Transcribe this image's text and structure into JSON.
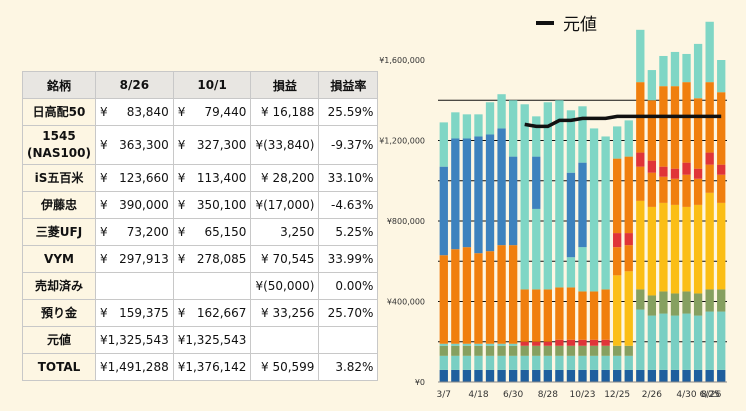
{
  "table": {
    "headers": [
      "銘柄",
      "8/26",
      "10/1",
      "損益",
      "損益率"
    ],
    "rows": [
      {
        "name": "日高配50",
        "a_cur": "¥",
        "a": "83,840",
        "b_cur": "¥",
        "b": "79,440",
        "pl": "¥ 16,188",
        "pct": "25.59%"
      },
      {
        "name": "1545\n(NAS100)",
        "a_cur": "¥",
        "a": "363,300",
        "b_cur": "¥",
        "b": "327,300",
        "pl": "¥(33,840)",
        "pct": "-9.37%"
      },
      {
        "name": "iS五百米",
        "a_cur": "¥",
        "a": "123,660",
        "b_cur": "¥",
        "b": "113,400",
        "pl": "¥ 28,200",
        "pct": "33.10%"
      },
      {
        "name": "伊藤忠",
        "a_cur": "¥",
        "a": "390,000",
        "b_cur": "¥",
        "b": "350,100",
        "pl": "¥(17,000)",
        "pct": "-4.63%"
      },
      {
        "name": "三菱UFJ",
        "a_cur": "¥",
        "a": "73,200",
        "b_cur": "¥",
        "b": "65,150",
        "pl": "3,250",
        "pct": "5.25%"
      },
      {
        "name": "VYM",
        "a_cur": "¥",
        "a": "297,913",
        "b_cur": "¥",
        "b": "278,085",
        "pl": "¥ 70,545",
        "pct": "33.99%"
      },
      {
        "name": "売却済み",
        "a_cur": "",
        "a": "",
        "b_cur": "",
        "b": "",
        "pl": "¥(50,000)",
        "pct": "0.00%"
      },
      {
        "name": "預り金",
        "a_cur": "¥",
        "a": "159,375",
        "b_cur": "¥",
        "b": "162,667",
        "pl": "¥ 33,256",
        "pct": "25.70%"
      },
      {
        "name": "元値",
        "a_cur": "",
        "a": "¥1,325,543",
        "b_cur": "",
        "b": "¥1,325,543",
        "pl": "",
        "pct": ""
      },
      {
        "name": "TOTAL",
        "a_cur": "",
        "a": "¥1,491,288",
        "b_cur": "",
        "b": "¥1,376,142",
        "pl": "¥ 50,599",
        "pct": "3.82%"
      }
    ]
  },
  "chart_data": {
    "type": "bar",
    "stacked": true,
    "legend": {
      "label": "元値",
      "position": "top"
    },
    "y_ticks": [
      "¥1,600,000",
      "¥1,200,000",
      "¥800,000",
      "¥400,000",
      "¥0"
    ],
    "ylim": [
      0,
      1600000
    ],
    "x_tick_labels": [
      "3/7",
      "4/18",
      "6/30",
      "8/28",
      "10/23",
      "12/25",
      "2/26",
      "4/30",
      "6/25",
      "8/26"
    ],
    "colors": {
      "s1": "#1f5f9e",
      "s2": "#79cfc3",
      "s3": "#86a060",
      "s4": "#e03438",
      "s5": "#f07f0e",
      "s6": "#fbbe16",
      "s7": "#3d82be",
      "s8": "#7fd6c5",
      "line": "#111111"
    },
    "bars": [
      [
        [
          60000,
          "s1"
        ],
        [
          70000,
          "s2"
        ],
        [
          50000,
          "s3"
        ],
        [
          10000,
          "s2"
        ],
        [
          440000,
          "s5"
        ],
        [
          440000,
          "s7"
        ],
        [
          220000,
          "s8"
        ]
      ],
      [
        [
          60000,
          "s1"
        ],
        [
          70000,
          "s2"
        ],
        [
          50000,
          "s3"
        ],
        [
          10000,
          "s2"
        ],
        [
          470000,
          "s5"
        ],
        [
          550000,
          "s7"
        ],
        [
          130000,
          "s8"
        ]
      ],
      [
        [
          60000,
          "s1"
        ],
        [
          70000,
          "s2"
        ],
        [
          50000,
          "s3"
        ],
        [
          10000,
          "s2"
        ],
        [
          480000,
          "s5"
        ],
        [
          540000,
          "s7"
        ],
        [
          120000,
          "s8"
        ]
      ],
      [
        [
          60000,
          "s1"
        ],
        [
          70000,
          "s2"
        ],
        [
          50000,
          "s3"
        ],
        [
          10000,
          "s2"
        ],
        [
          450000,
          "s5"
        ],
        [
          580000,
          "s7"
        ],
        [
          110000,
          "s8"
        ]
      ],
      [
        [
          60000,
          "s1"
        ],
        [
          70000,
          "s2"
        ],
        [
          50000,
          "s3"
        ],
        [
          10000,
          "s2"
        ],
        [
          460000,
          "s5"
        ],
        [
          580000,
          "s7"
        ],
        [
          160000,
          "s8"
        ]
      ],
      [
        [
          60000,
          "s1"
        ],
        [
          70000,
          "s2"
        ],
        [
          50000,
          "s3"
        ],
        [
          10000,
          "s2"
        ],
        [
          490000,
          "s5"
        ],
        [
          580000,
          "s7"
        ],
        [
          170000,
          "s8"
        ]
      ],
      [
        [
          60000,
          "s1"
        ],
        [
          70000,
          "s2"
        ],
        [
          50000,
          "s3"
        ],
        [
          10000,
          "s2"
        ],
        [
          490000,
          "s5"
        ],
        [
          440000,
          "s7"
        ],
        [
          280000,
          "s8"
        ]
      ],
      [
        [
          60000,
          "s1"
        ],
        [
          70000,
          "s2"
        ],
        [
          50000,
          "s3"
        ],
        [
          20000,
          "s4"
        ],
        [
          260000,
          "s5"
        ],
        [
          920000,
          "s8"
        ]
      ],
      [
        [
          60000,
          "s1"
        ],
        [
          70000,
          "s2"
        ],
        [
          50000,
          "s3"
        ],
        [
          20000,
          "s4"
        ],
        [
          260000,
          "s5"
        ],
        [
          400000,
          "s8"
        ],
        [
          260000,
          "s7"
        ],
        [
          200000,
          "s8"
        ]
      ],
      [
        [
          60000,
          "s1"
        ],
        [
          70000,
          "s2"
        ],
        [
          50000,
          "s3"
        ],
        [
          20000,
          "s4"
        ],
        [
          260000,
          "s5"
        ],
        [
          930000,
          "s8"
        ]
      ],
      [
        [
          60000,
          "s1"
        ],
        [
          70000,
          "s2"
        ],
        [
          50000,
          "s3"
        ],
        [
          30000,
          "s4"
        ],
        [
          260000,
          "s5"
        ],
        [
          930000,
          "s8"
        ]
      ],
      [
        [
          60000,
          "s1"
        ],
        [
          70000,
          "s2"
        ],
        [
          50000,
          "s3"
        ],
        [
          30000,
          "s4"
        ],
        [
          260000,
          "s5"
        ],
        [
          150000,
          "s8"
        ],
        [
          420000,
          "s7"
        ],
        [
          310000,
          "s8"
        ]
      ],
      [
        [
          60000,
          "s1"
        ],
        [
          70000,
          "s2"
        ],
        [
          50000,
          "s3"
        ],
        [
          30000,
          "s4"
        ],
        [
          240000,
          "s5"
        ],
        [
          220000,
          "s8"
        ],
        [
          420000,
          "s7"
        ],
        [
          280000,
          "s8"
        ]
      ],
      [
        [
          60000,
          "s1"
        ],
        [
          70000,
          "s2"
        ],
        [
          50000,
          "s3"
        ],
        [
          30000,
          "s4"
        ],
        [
          240000,
          "s5"
        ],
        [
          810000,
          "s8"
        ]
      ],
      [
        [
          60000,
          "s1"
        ],
        [
          70000,
          "s2"
        ],
        [
          50000,
          "s3"
        ],
        [
          30000,
          "s4"
        ],
        [
          250000,
          "s5"
        ],
        [
          760000,
          "s8"
        ]
      ],
      [
        [
          60000,
          "s1"
        ],
        [
          70000,
          "s2"
        ],
        [
          50000,
          "s3"
        ],
        [
          350000,
          "s6"
        ],
        [
          140000,
          "s5"
        ],
        [
          70000,
          "s4"
        ],
        [
          370000,
          "s5"
        ],
        [
          160000,
          "s8"
        ]
      ],
      [
        [
          60000,
          "s1"
        ],
        [
          70000,
          "s2"
        ],
        [
          50000,
          "s3"
        ],
        [
          370000,
          "s6"
        ],
        [
          130000,
          "s5"
        ],
        [
          60000,
          "s4"
        ],
        [
          380000,
          "s5"
        ],
        [
          180000,
          "s8"
        ]
      ],
      [
        [
          60000,
          "s1"
        ],
        [
          300000,
          "s2"
        ],
        [
          100000,
          "s3"
        ],
        [
          440000,
          "s6"
        ],
        [
          170000,
          "s5"
        ],
        [
          70000,
          "s4"
        ],
        [
          350000,
          "s5"
        ],
        [
          260000,
          "s8"
        ]
      ],
      [
        [
          60000,
          "s1"
        ],
        [
          270000,
          "s2"
        ],
        [
          100000,
          "s3"
        ],
        [
          440000,
          "s6"
        ],
        [
          170000,
          "s5"
        ],
        [
          60000,
          "s4"
        ],
        [
          300000,
          "s5"
        ],
        [
          150000,
          "s8"
        ]
      ],
      [
        [
          60000,
          "s1"
        ],
        [
          280000,
          "s2"
        ],
        [
          110000,
          "s3"
        ],
        [
          440000,
          "s6"
        ],
        [
          130000,
          "s5"
        ],
        [
          50000,
          "s4"
        ],
        [
          400000,
          "s5"
        ],
        [
          150000,
          "s8"
        ]
      ],
      [
        [
          60000,
          "s1"
        ],
        [
          270000,
          "s2"
        ],
        [
          110000,
          "s3"
        ],
        [
          440000,
          "s6"
        ],
        [
          130000,
          "s5"
        ],
        [
          50000,
          "s4"
        ],
        [
          410000,
          "s5"
        ],
        [
          170000,
          "s8"
        ]
      ],
      [
        [
          60000,
          "s1"
        ],
        [
          280000,
          "s2"
        ],
        [
          110000,
          "s3"
        ],
        [
          420000,
          "s6"
        ],
        [
          160000,
          "s5"
        ],
        [
          60000,
          "s4"
        ],
        [
          400000,
          "s5"
        ],
        [
          140000,
          "s8"
        ]
      ],
      [
        [
          60000,
          "s1"
        ],
        [
          270000,
          "s2"
        ],
        [
          110000,
          "s3"
        ],
        [
          440000,
          "s6"
        ],
        [
          130000,
          "s5"
        ],
        [
          50000,
          "s4"
        ],
        [
          350000,
          "s5"
        ],
        [
          270000,
          "s8"
        ]
      ],
      [
        [
          60000,
          "s1"
        ],
        [
          290000,
          "s2"
        ],
        [
          110000,
          "s3"
        ],
        [
          480000,
          "s6"
        ],
        [
          140000,
          "s5"
        ],
        [
          60000,
          "s4"
        ],
        [
          350000,
          "s5"
        ],
        [
          300000,
          "s8"
        ]
      ],
      [
        [
          60000,
          "s1"
        ],
        [
          290000,
          "s2"
        ],
        [
          110000,
          "s3"
        ],
        [
          430000,
          "s6"
        ],
        [
          140000,
          "s5"
        ],
        [
          50000,
          "s4"
        ],
        [
          360000,
          "s5"
        ],
        [
          160000,
          "s8"
        ]
      ]
    ],
    "line": [
      null,
      null,
      null,
      null,
      null,
      null,
      null,
      1280000,
      1270000,
      1270000,
      1300000,
      1300000,
      1310000,
      1310000,
      1310000,
      1320000,
      1320000,
      1320000,
      1320000,
      1320000,
      1320000,
      1320000,
      1320000,
      1320000,
      1320000
    ]
  }
}
